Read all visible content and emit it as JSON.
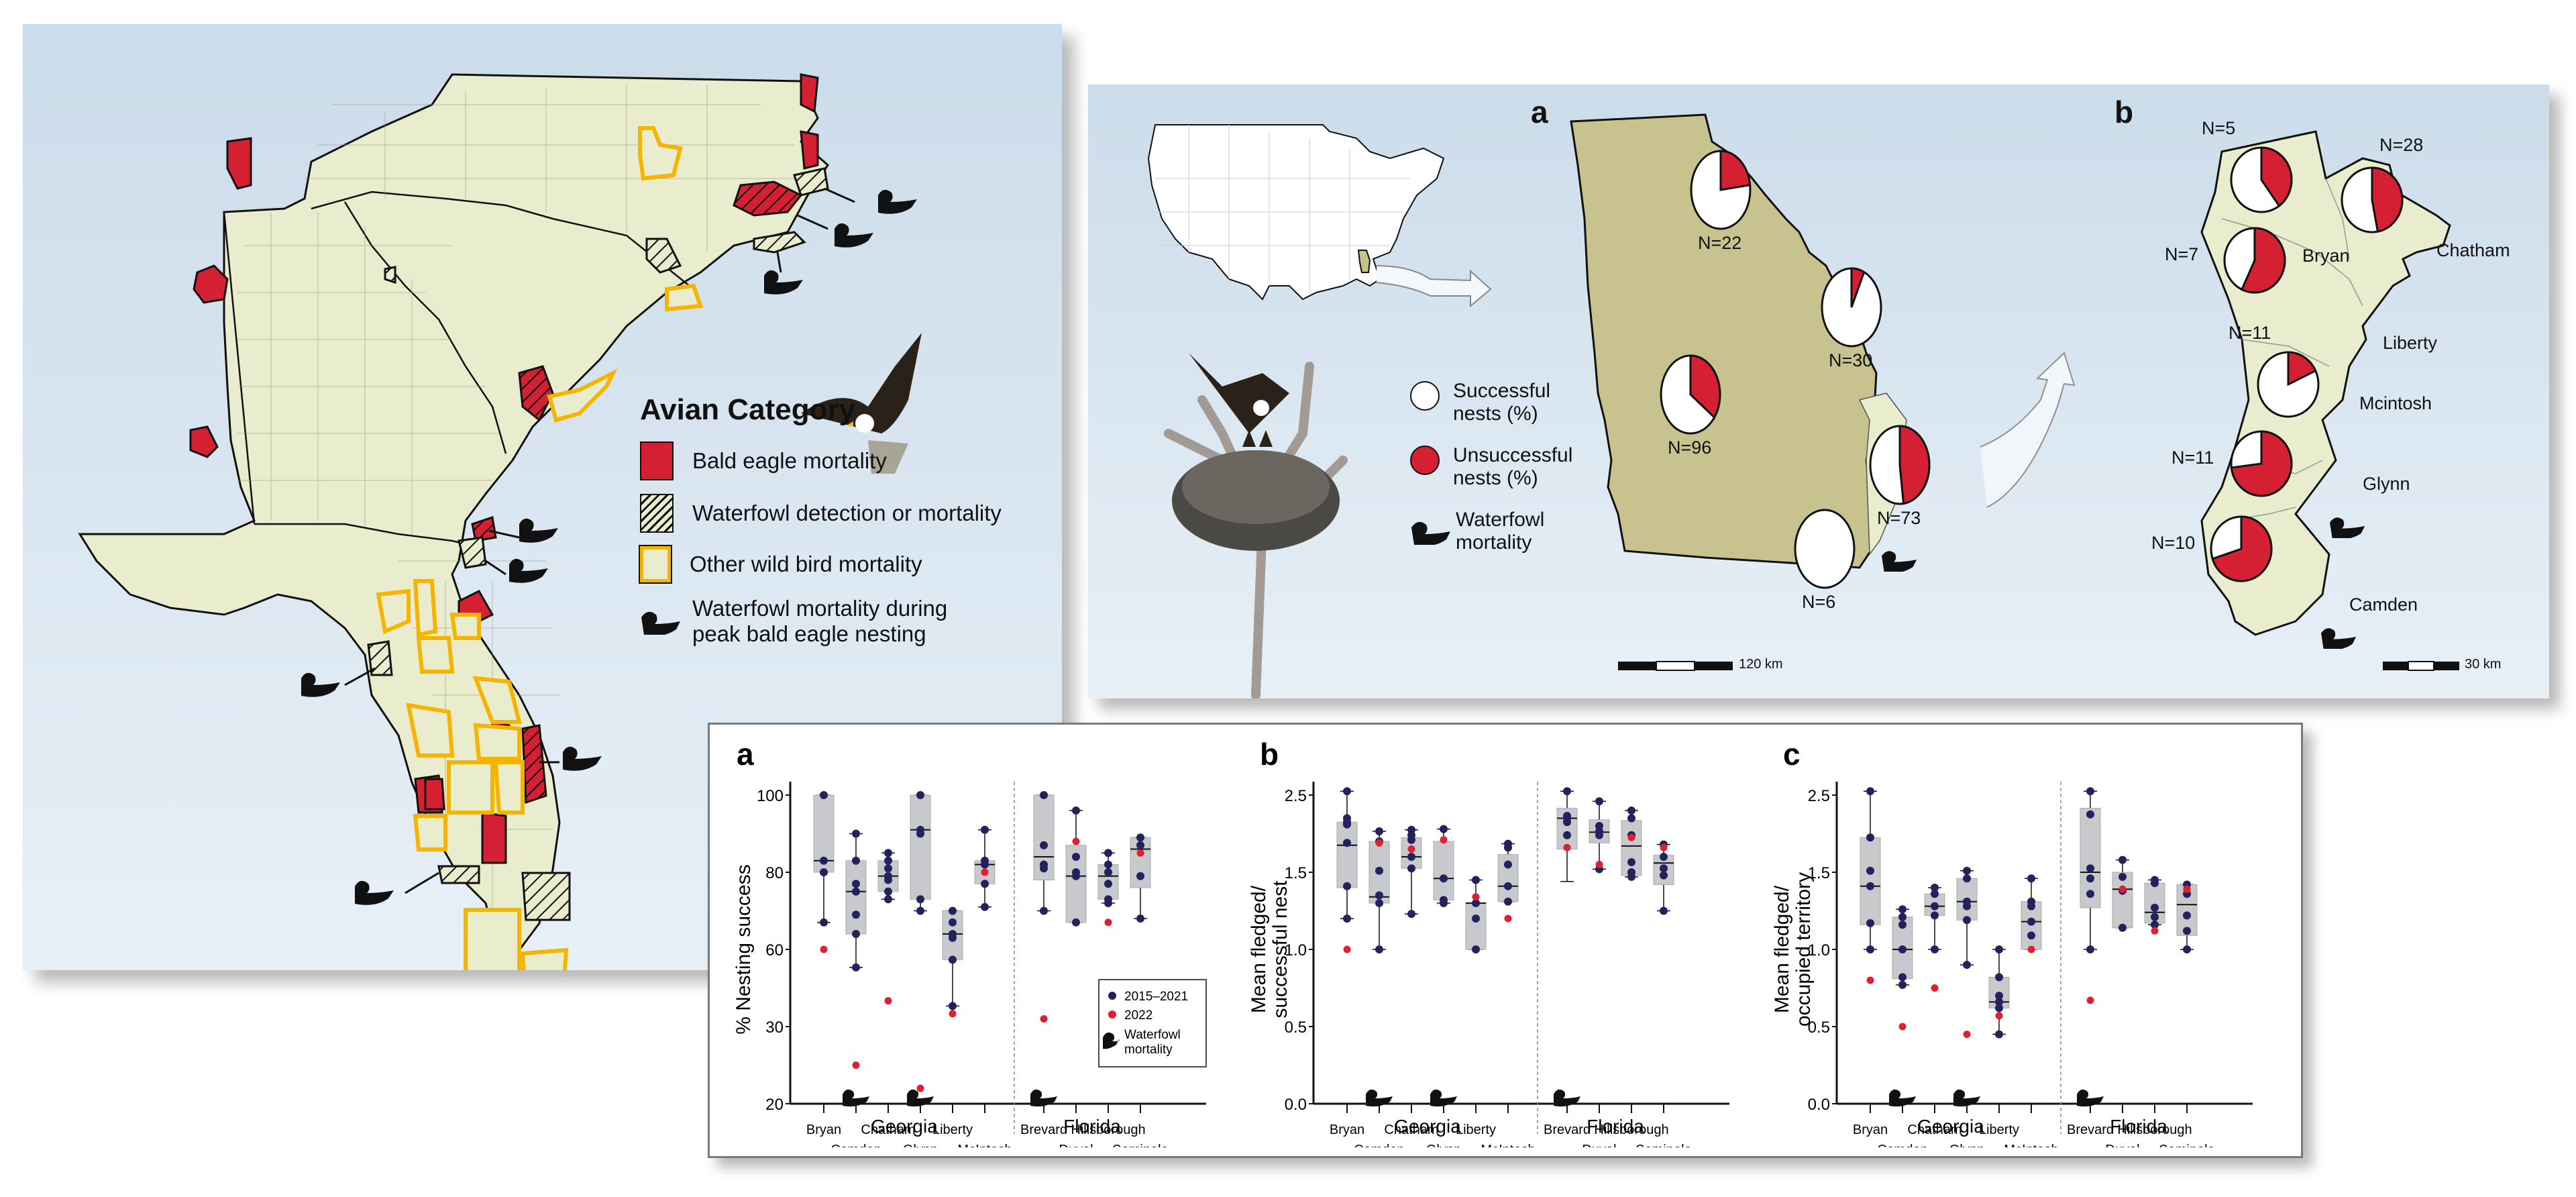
{
  "colors": {
    "eagle_red": "#d42032",
    "land": "#e9eccd",
    "georgia_fill": "#c8c38e",
    "other_bird_outline": "#f5b400",
    "blue_dot": "#23225e",
    "red_dot": "#e0202f",
    "box_fill": "#c8c9cc"
  },
  "left_map": {
    "legend": {
      "title": "Avian Category",
      "items": [
        {
          "icon": "red-square-icon",
          "label": "Bald eagle mortality"
        },
        {
          "icon": "hatched-square-icon",
          "label": "Waterfowl detection or mortality"
        },
        {
          "icon": "yellow-outline-square-icon",
          "label": "Other wild bird mortality"
        },
        {
          "icon": "duck-icon",
          "label_line1": "Waterfowl mortality during",
          "label_line2": "peak bald eagle nesting"
        }
      ]
    }
  },
  "right_maps": {
    "panel_a_letter": "a",
    "panel_b_letter": "b",
    "legend": {
      "successful_line1": "Successful",
      "successful_line2": "nests (%)",
      "unsuccessful_line1": "Unsuccessful",
      "unsuccessful_line2": "nests (%)",
      "waterfowl_line1": "Waterfowl",
      "waterfowl_line2": "mortality"
    },
    "georgia_pies": [
      {
        "label": "N=22",
        "unsuccessful_pct": 23
      },
      {
        "label": "N=30",
        "unsuccessful_pct": 7
      },
      {
        "label": "N=96",
        "unsuccessful_pct": 35
      },
      {
        "label": "N=73",
        "unsuccessful_pct": 48
      },
      {
        "label": "N=6",
        "unsuccessful_pct": 0
      }
    ],
    "coastal_pies": [
      {
        "label": "N=5",
        "unsuccessful_pct": 40
      },
      {
        "label": "N=28",
        "unsuccessful_pct": 47
      },
      {
        "label": "N=7",
        "unsuccessful_pct": 57
      },
      {
        "label": "N=11",
        "unsuccessful_pct": 18
      },
      {
        "label": "N=11",
        "unsuccessful_pct": 73
      },
      {
        "label": "N=10",
        "unsuccessful_pct": 70
      }
    ],
    "county_labels": [
      "Chatham",
      "Bryan",
      "Liberty",
      "Mcintosh",
      "Glynn",
      "Camden"
    ],
    "scale_a": "120 km",
    "scale_b": "30 km"
  },
  "chart_data": [
    {
      "type": "box",
      "letter": "a",
      "ylabel": "% Nesting success",
      "yticks": [
        20,
        30,
        60,
        80,
        100
      ],
      "ylim": [
        20,
        100
      ],
      "groups": [
        "Georgia",
        "Florida"
      ],
      "categories": [
        "Bryan",
        "Camden",
        "Chatham",
        "Glynn",
        "Liberty",
        "McIntosh",
        "Brevard",
        "Duval",
        "Hillsborough",
        "Seminole"
      ],
      "waterfowl_mortality": [
        "Camden",
        "Glynn",
        "Brevard"
      ],
      "legend": {
        "series1": "2015–2021",
        "series2": "2022",
        "waterfowl_line1": "Waterfowl",
        "waterfowl_line2": "mortality"
      },
      "boxes": [
        {
          "min": 67,
          "q1": 80,
          "median": 83,
          "q3": 100,
          "max": 100
        },
        {
          "min": 53,
          "q1": 64,
          "median": 75,
          "q3": 83,
          "max": 90
        },
        {
          "min": 73,
          "q1": 75,
          "median": 79,
          "q3": 83,
          "max": 85
        },
        {
          "min": 70,
          "q1": 73,
          "median": 91,
          "q3": 100,
          "max": 100
        },
        {
          "min": 38,
          "q1": 56,
          "median": 64,
          "q3": 70,
          "max": 70
        },
        {
          "min": 71,
          "q1": 77,
          "median": 82,
          "q3": 83,
          "max": 91
        },
        {
          "min": 70,
          "q1": 78,
          "median": 84,
          "q3": 100,
          "max": 100
        },
        {
          "min": 67,
          "q1": 67,
          "median": 79,
          "q3": 87,
          "max": 96
        },
        {
          "min": 72,
          "q1": 73,
          "median": 79,
          "q3": 82,
          "max": 85
        },
        {
          "min": 68,
          "q1": 76,
          "median": 86,
          "q3": 89,
          "max": 89
        }
      ],
      "series": [
        {
          "name": "2015–2021",
          "values": [
            [
              100,
              83,
              80,
              67
            ],
            [
              90,
              83,
              77,
              75,
              69,
              64,
              53
            ],
            [
              85,
              83,
              81,
              79,
              78,
              75,
              73
            ],
            [
              100,
              91,
              90,
              73,
              70
            ],
            [
              70,
              67,
              64,
              63,
              56,
              38
            ],
            [
              91,
              83,
              82,
              77,
              71
            ],
            [
              100,
              87,
              82,
              81,
              70
            ],
            [
              96,
              84,
              80,
              79,
              67
            ],
            [
              85,
              82,
              80,
              77,
              73,
              72
            ],
            [
              89,
              87,
              79,
              68
            ]
          ]
        },
        {
          "name": "2022",
          "values": [
            60,
            25,
            40,
            22,
            35,
            80,
            33,
            88,
            67,
            85
          ]
        }
      ]
    },
    {
      "type": "box",
      "letter": "b",
      "ylabel_line1": "Mean fledged/",
      "ylabel_line2": "successful nest",
      "yticks": [
        "0.0",
        "0.5",
        "1.0",
        "1.5",
        "2.5"
      ],
      "ylim": [
        0,
        2.5
      ],
      "groups": [
        "Georgia",
        "Florida"
      ],
      "categories": [
        "Bryan",
        "Camden",
        "Chatham",
        "Glynn",
        "Liberty",
        "McIntosh",
        "Brevard",
        "Duval",
        "Hillsborough",
        "Seminole"
      ],
      "waterfowl_mortality": [
        "Camden",
        "Glynn",
        "Brevard"
      ],
      "boxes": [
        {
          "min": 1.2,
          "q1": 1.4,
          "median": 1.85,
          "q3": 2.15,
          "max": 2.55
        },
        {
          "min": 1.0,
          "q1": 1.3,
          "median": 1.34,
          "q3": 1.9,
          "max": 2.03
        },
        {
          "min": 1.23,
          "q1": 1.55,
          "median": 1.7,
          "q3": 1.95,
          "max": 2.05
        },
        {
          "min": 1.3,
          "q1": 1.32,
          "median": 1.46,
          "q3": 1.9,
          "max": 2.06
        },
        {
          "min": 1.0,
          "q1": 1.0,
          "median": 1.3,
          "q3": 1.3,
          "max": 1.45
        },
        {
          "min": 1.31,
          "q1": 1.31,
          "median": 1.41,
          "q3": 1.73,
          "max": 1.87
        },
        {
          "min": 1.44,
          "q1": 1.8,
          "median": 2.2,
          "q3": 2.33,
          "max": 2.55
        },
        {
          "min": 1.54,
          "q1": 1.88,
          "median": 2.02,
          "q3": 2.18,
          "max": 2.42
        },
        {
          "min": 1.47,
          "q1": 1.48,
          "median": 1.84,
          "q3": 2.17,
          "max": 2.3
        },
        {
          "min": 1.25,
          "q1": 1.42,
          "median": 1.62,
          "q3": 1.72,
          "max": 1.86
        }
      ],
      "series": [
        {
          "name": "2015–2021",
          "values": [
            [
              2.55,
              2.2,
              2.15,
              2.12,
              1.88,
              1.41,
              1.2
            ],
            [
              2.03,
              1.9,
              1.52,
              1.35,
              1.3,
              1.0
            ],
            [
              2.05,
              1.98,
              1.92,
              1.7,
              1.55,
              1.23
            ],
            [
              2.06,
              1.46,
              1.32,
              1.3
            ],
            [
              1.45,
              1.3,
              1.2,
              1.0
            ],
            [
              1.87,
              1.82,
              1.6,
              1.41,
              1.31
            ],
            [
              2.55,
              2.23,
              2.2,
              2.15,
              1.98
            ],
            [
              2.42,
              2.1,
              2.03,
              1.98,
              1.54
            ],
            [
              2.3,
              2.2,
              1.98,
              1.63,
              1.5,
              1.47
            ],
            [
              1.86,
              1.7,
              1.55,
              1.48,
              1.25
            ]
          ]
        },
        {
          "name": "2022",
          "values": [
            1.0,
            1.88,
            1.8,
            1.92,
            1.34,
            1.2,
            1.82,
            1.6,
            1.95,
            1.82
          ]
        }
      ]
    },
    {
      "type": "box",
      "letter": "c",
      "ylabel_line1": "Mean fledged/",
      "ylabel_line2": "occupied territory",
      "yticks": [
        "0.0",
        "0.5",
        "1.0",
        "1.5",
        "2.5"
      ],
      "ylim": [
        0,
        2.5
      ],
      "groups": [
        "Georgia",
        "Florida"
      ],
      "categories": [
        "Bryan",
        "Camden",
        "Chatham",
        "Glynn",
        "Liberty",
        "McIntosh",
        "Brevard",
        "Duval",
        "Hillsborough",
        "Seminole"
      ],
      "waterfowl_mortality": [
        "Camden",
        "Glynn",
        "Brevard"
      ],
      "boxes": [
        {
          "min": 1.0,
          "q1": 1.16,
          "median": 1.41,
          "q3": 1.95,
          "max": 2.55
        },
        {
          "min": 0.77,
          "q1": 0.81,
          "median": 1.0,
          "q3": 1.21,
          "max": 1.26
        },
        {
          "min": 1.0,
          "q1": 1.22,
          "median": 1.28,
          "q3": 1.36,
          "max": 1.4
        },
        {
          "min": 0.9,
          "q1": 1.19,
          "median": 1.31,
          "q3": 1.46,
          "max": 1.52
        },
        {
          "min": 0.45,
          "q1": 0.62,
          "median": 0.66,
          "q3": 0.82,
          "max": 1.0
        },
        {
          "min": 1.0,
          "q1": 1.0,
          "median": 1.18,
          "q3": 1.31,
          "max": 1.46
        },
        {
          "min": 1.0,
          "q1": 1.27,
          "median": 1.5,
          "q3": 2.33,
          "max": 2.55
        },
        {
          "min": 1.14,
          "q1": 1.14,
          "median": 1.39,
          "q3": 1.5,
          "max": 1.66
        },
        {
          "min": 1.16,
          "q1": 1.17,
          "median": 1.24,
          "q3": 1.43,
          "max": 1.45
        },
        {
          "min": 1.0,
          "q1": 1.09,
          "median": 1.29,
          "q3": 1.42,
          "max": 1.42
        }
      ],
      "series": [
        {
          "name": "2015–2021",
          "values": [
            [
              2.55,
              1.95,
              1.52,
              1.41,
              1.17,
              1.0
            ],
            [
              1.26,
              1.21,
              1.16,
              1.0,
              0.82,
              0.77
            ],
            [
              1.4,
              1.36,
              1.28,
              1.22,
              1.0
            ],
            [
              1.52,
              1.46,
              1.31,
              1.28,
              1.19,
              0.9
            ],
            [
              1.0,
              0.82,
              0.7,
              0.66,
              0.62,
              0.45
            ],
            [
              1.46,
              1.31,
              1.28,
              1.18,
              1.09
            ],
            [
              2.55,
              2.25,
              1.55,
              1.46,
              1.36,
              1.0
            ],
            [
              1.66,
              1.47,
              1.38,
              1.14
            ],
            [
              1.45,
              1.43,
              1.27,
              1.21,
              1.16
            ],
            [
              1.42,
              1.36,
              1.22,
              1.12,
              1.0
            ]
          ]
        },
        {
          "name": "2022",
          "values": [
            0.8,
            0.5,
            0.75,
            0.45,
            0.57,
            1.0,
            0.67,
            1.39,
            1.12,
            1.39
          ]
        }
      ]
    }
  ]
}
